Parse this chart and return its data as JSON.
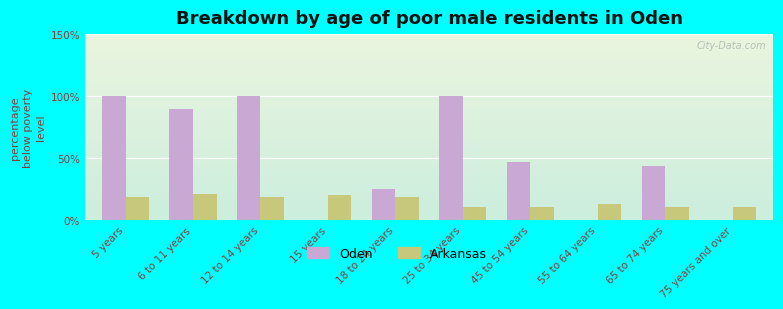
{
  "title": "Breakdown by age of poor male residents in Oden",
  "ylabel": "percentage\nbelow poverty\nlevel",
  "categories": [
    "5 years",
    "6 to 11 years",
    "12 to 14 years",
    "15 years",
    "18 to 24 years",
    "25 to 34 years",
    "45 to 54 years",
    "55 to 64 years",
    "65 to 74 years",
    "75 years and over"
  ],
  "oden_values": [
    100,
    90,
    100,
    0,
    25,
    100,
    47,
    0,
    44,
    0
  ],
  "arkansas_values": [
    19,
    21,
    19,
    20,
    19,
    11,
    11,
    13,
    11,
    11
  ],
  "oden_color": "#c9a8d4",
  "arkansas_color": "#c8c87a",
  "background_top": "#eaf5df",
  "background_bottom": "#cceedd",
  "outer_background": "#00ffff",
  "ylim": [
    0,
    150
  ],
  "yticks": [
    0,
    50,
    100,
    150
  ],
  "ytick_labels": [
    "0%",
    "50%",
    "100%",
    "150%"
  ],
  "bar_width": 0.35,
  "title_fontsize": 13,
  "axis_label_fontsize": 8,
  "tick_fontsize": 7.5,
  "tick_color": "#8b3a3a",
  "legend_labels": [
    "Oden",
    "Arkansas"
  ],
  "watermark": "City-Data.com"
}
